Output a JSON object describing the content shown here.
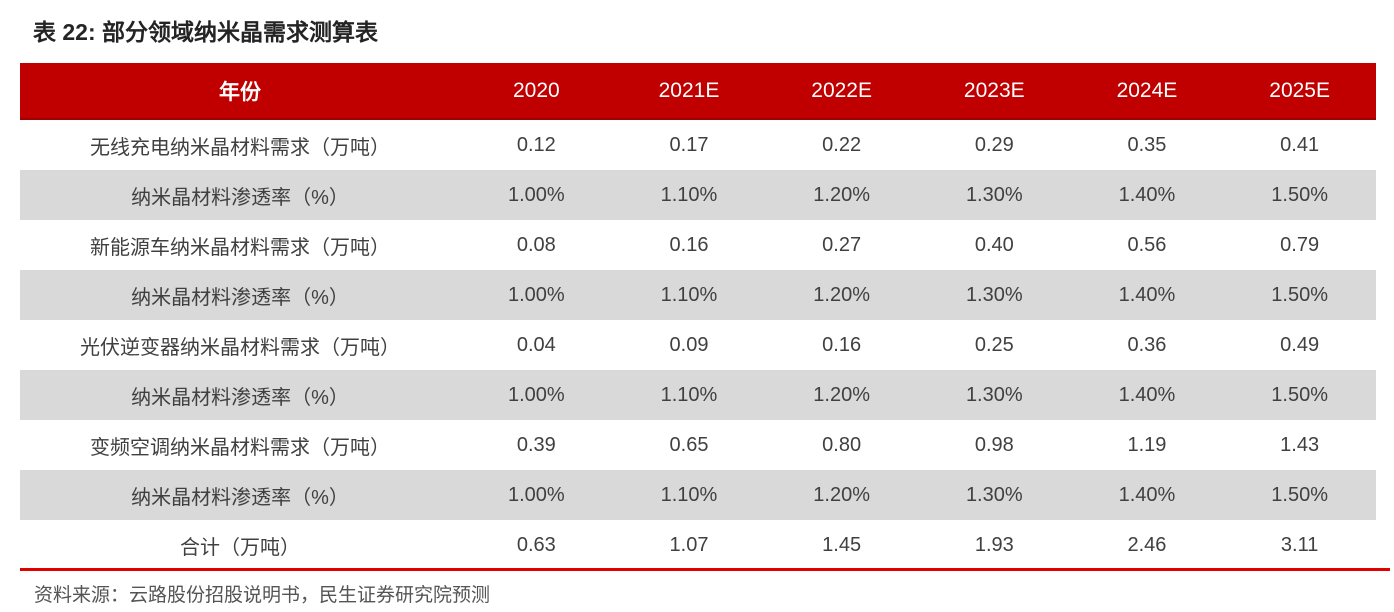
{
  "page": {
    "title": "表 22: 部分领域纳米晶需求测算表",
    "source": "资料来源：云路股份招股说明书，民生证券研究院预测"
  },
  "colors": {
    "header_bg": "#c00000",
    "header_text": "#ffffff",
    "alt_row_bg": "#d9d9d9",
    "bottom_rule": "#e00000",
    "body_text": "#404040"
  },
  "table": {
    "columns": [
      "年份",
      "2020",
      "2021E",
      "2022E",
      "2023E",
      "2024E",
      "2025E"
    ],
    "rows": [
      {
        "label": "无线充电纳米晶材料需求（万吨）",
        "values": [
          "0.12",
          "0.17",
          "0.22",
          "0.29",
          "0.35",
          "0.41"
        ]
      },
      {
        "label": "纳米晶材料渗透率（%）",
        "values": [
          "1.00%",
          "1.10%",
          "1.20%",
          "1.30%",
          "1.40%",
          "1.50%"
        ]
      },
      {
        "label": "新能源车纳米晶材料需求（万吨）",
        "values": [
          "0.08",
          "0.16",
          "0.27",
          "0.40",
          "0.56",
          "0.79"
        ]
      },
      {
        "label": "纳米晶材料渗透率（%）",
        "values": [
          "1.00%",
          "1.10%",
          "1.20%",
          "1.30%",
          "1.40%",
          "1.50%"
        ]
      },
      {
        "label": "光伏逆变器纳米晶材料需求（万吨）",
        "values": [
          "0.04",
          "0.09",
          "0.16",
          "0.25",
          "0.36",
          "0.49"
        ]
      },
      {
        "label": "纳米晶材料渗透率（%）",
        "values": [
          "1.00%",
          "1.10%",
          "1.20%",
          "1.30%",
          "1.40%",
          "1.50%"
        ]
      },
      {
        "label": "变频空调纳米晶材料需求（万吨）",
        "values": [
          "0.39",
          "0.65",
          "0.80",
          "0.98",
          "1.19",
          "1.43"
        ]
      },
      {
        "label": "纳米晶材料渗透率（%）",
        "values": [
          "1.00%",
          "1.10%",
          "1.20%",
          "1.30%",
          "1.40%",
          "1.50%"
        ]
      },
      {
        "label": "合计（万吨）",
        "values": [
          "0.63",
          "1.07",
          "1.45",
          "1.93",
          "2.46",
          "3.11"
        ]
      }
    ]
  }
}
